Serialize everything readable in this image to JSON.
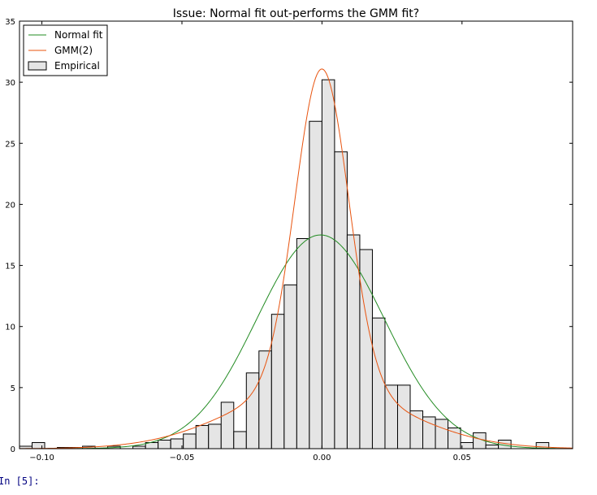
{
  "notebook": {
    "prompt": "In [5]:"
  },
  "chart_data": {
    "type": "bar",
    "title": "Issue: Normal fit out-performs the GMM fit?",
    "xlabel": "",
    "ylabel": "",
    "xlim": [
      -0.108,
      0.0895
    ],
    "ylim": [
      0,
      35
    ],
    "xticks": [
      -0.1,
      -0.05,
      0.0,
      0.05
    ],
    "xtick_labels": [
      "−0.10",
      "−0.05",
      "0.00",
      "0.05"
    ],
    "yticks": [
      0,
      5,
      10,
      15,
      20,
      25,
      30,
      35
    ],
    "ytick_labels": [
      "0",
      "5",
      "10",
      "15",
      "20",
      "25",
      "30",
      "35"
    ],
    "grid": false,
    "legend_position": "top-left",
    "colors": {
      "normal": "#228b22",
      "gmm": "#e8530e",
      "bar_fill": "#e5e5e5",
      "bar_edge": "#000000"
    },
    "histogram": {
      "name": "Empirical",
      "bin_width": 0.0045,
      "bins": [
        {
          "x0": -0.108,
          "h": 0.2
        },
        {
          "x0": -0.1035,
          "h": 0.5
        },
        {
          "x0": -0.099,
          "h": 0.0
        },
        {
          "x0": -0.0945,
          "h": 0.1
        },
        {
          "x0": -0.09,
          "h": 0.1
        },
        {
          "x0": -0.0855,
          "h": 0.2
        },
        {
          "x0": -0.081,
          "h": 0.0
        },
        {
          "x0": -0.0765,
          "h": 0.2
        },
        {
          "x0": -0.072,
          "h": 0.0
        },
        {
          "x0": -0.0675,
          "h": 0.2
        },
        {
          "x0": -0.063,
          "h": 0.5
        },
        {
          "x0": -0.0585,
          "h": 0.7
        },
        {
          "x0": -0.054,
          "h": 0.8
        },
        {
          "x0": -0.0495,
          "h": 1.2
        },
        {
          "x0": -0.045,
          "h": 1.9
        },
        {
          "x0": -0.0405,
          "h": 2.0
        },
        {
          "x0": -0.036,
          "h": 3.8
        },
        {
          "x0": -0.0315,
          "h": 1.4
        },
        {
          "x0": -0.027,
          "h": 6.2
        },
        {
          "x0": -0.0225,
          "h": 8.0
        },
        {
          "x0": -0.018,
          "h": 11.0
        },
        {
          "x0": -0.0135,
          "h": 13.4
        },
        {
          "x0": -0.009,
          "h": 17.2
        },
        {
          "x0": -0.0045,
          "h": 26.8
        },
        {
          "x0": 0.0,
          "h": 30.2
        },
        {
          "x0": 0.0045,
          "h": 24.3
        },
        {
          "x0": 0.009,
          "h": 17.5
        },
        {
          "x0": 0.0135,
          "h": 16.3
        },
        {
          "x0": 0.018,
          "h": 10.7
        },
        {
          "x0": 0.0225,
          "h": 5.2
        },
        {
          "x0": 0.027,
          "h": 5.2
        },
        {
          "x0": 0.0315,
          "h": 3.1
        },
        {
          "x0": 0.036,
          "h": 2.6
        },
        {
          "x0": 0.0405,
          "h": 2.4
        },
        {
          "x0": 0.045,
          "h": 1.7
        },
        {
          "x0": 0.0495,
          "h": 0.5
        },
        {
          "x0": 0.054,
          "h": 1.3
        },
        {
          "x0": 0.0585,
          "h": 0.3
        },
        {
          "x0": 0.063,
          "h": 0.7
        },
        {
          "x0": 0.0675,
          "h": 0.0
        },
        {
          "x0": 0.072,
          "h": 0.0
        },
        {
          "x0": 0.0765,
          "h": 0.5
        },
        {
          "x0": 0.081,
          "h": 0.0
        },
        {
          "x0": 0.0855,
          "h": 0.0
        }
      ]
    },
    "series": [
      {
        "name": "Normal fit",
        "kind": "line",
        "mean": -0.0005,
        "std": 0.0228
      },
      {
        "name": "GMM(2)",
        "kind": "line",
        "components": [
          {
            "weight": 0.62,
            "mean": 0.0,
            "std": 0.0095
          },
          {
            "weight": 0.38,
            "mean": -0.0015,
            "std": 0.03
          }
        ]
      }
    ],
    "legend": [
      "Normal fit",
      "GMM(2)",
      "Empirical"
    ]
  }
}
